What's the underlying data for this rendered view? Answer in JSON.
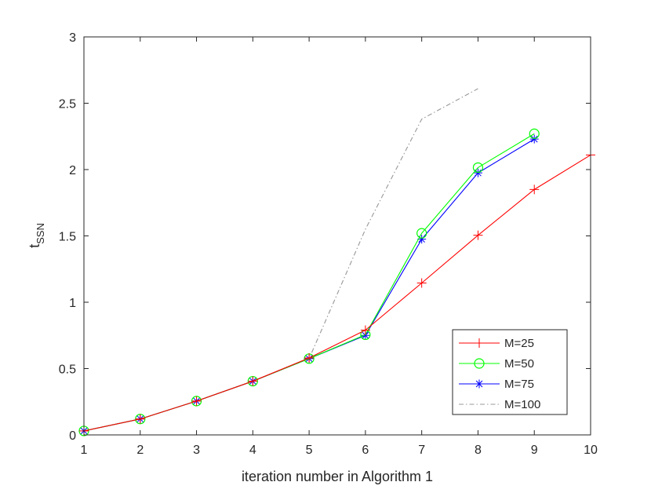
{
  "chart_data": {
    "type": "line",
    "title": "",
    "xlabel": "iteration number in Algorithm 1",
    "ylabel_main": "t",
    "ylabel_sub": "SSN",
    "xlim": [
      1,
      10
    ],
    "ylim": [
      0,
      3
    ],
    "xticks": [
      "1",
      "2",
      "3",
      "4",
      "5",
      "6",
      "7",
      "8",
      "9",
      "10"
    ],
    "yticks": [
      "0",
      "0.5",
      "1",
      "1.5",
      "2",
      "2.5",
      "3"
    ],
    "grid": false,
    "legend_position": "bottom-right",
    "series": [
      {
        "name": "M=25",
        "color": "#ff0000",
        "marker": "plus",
        "dash": "solid",
        "x": [
          1,
          2,
          3,
          4,
          5,
          6,
          7,
          8,
          9,
          10
        ],
        "values": [
          0.03,
          0.12,
          0.255,
          0.405,
          0.58,
          0.79,
          1.145,
          1.505,
          1.85,
          2.11
        ]
      },
      {
        "name": "M=50",
        "color": "#00ff00",
        "marker": "circle",
        "dash": "solid",
        "x": [
          1,
          2,
          3,
          4,
          5,
          6,
          7,
          8,
          9
        ],
        "values": [
          0.03,
          0.12,
          0.255,
          0.405,
          0.575,
          0.755,
          1.52,
          2.015,
          2.27
        ]
      },
      {
        "name": "M=75",
        "color": "#0000ff",
        "marker": "asterisk",
        "dash": "solid",
        "x": [
          1,
          2,
          3,
          4,
          5,
          6,
          7,
          8,
          9
        ],
        "values": [
          0.03,
          0.12,
          0.255,
          0.405,
          0.575,
          0.75,
          1.475,
          1.975,
          2.23
        ]
      },
      {
        "name": "M=100",
        "color": "#999999",
        "marker": "none",
        "dash": "dashdot",
        "x": [
          1,
          2,
          3,
          4,
          5,
          6,
          7,
          8
        ],
        "values": [
          0.03,
          0.12,
          0.255,
          0.405,
          0.575,
          1.55,
          2.38,
          2.61
        ]
      }
    ]
  }
}
